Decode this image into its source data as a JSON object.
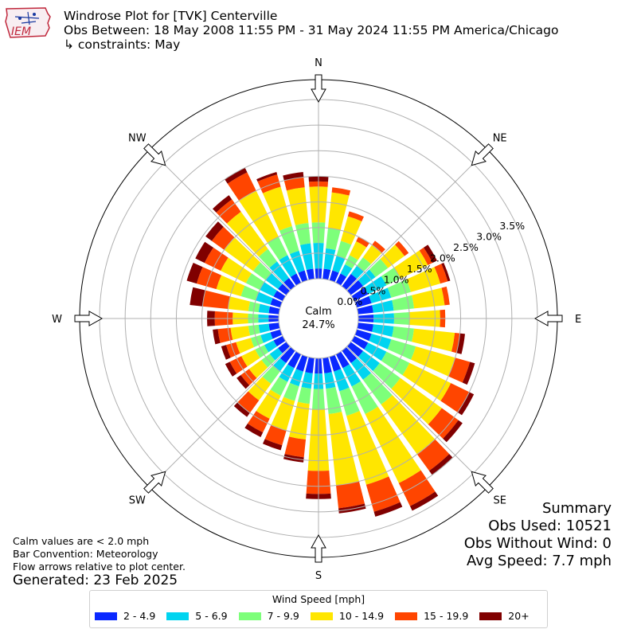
{
  "title": {
    "line1": "Windrose Plot for [TVK] Centerville",
    "line2": "Obs Between: 18 May 2008 11:55 PM - 31 May 2024 11:55 PM America/Chicago",
    "line3": "↳ constraints: May"
  },
  "logo": {
    "text": "IEM"
  },
  "notes": {
    "line1": "Calm values are < 2.0 mph",
    "line2": "Bar Convention: Meteorology",
    "line3": "Flow arrows relative to plot center.",
    "generated": "Generated: 23 Feb 2025"
  },
  "summary": {
    "heading": "Summary",
    "obs_used": "Obs Used: 10521",
    "obs_without_wind": "Obs Without Wind: 0",
    "avg_speed": "Avg Speed: 7.7 mph"
  },
  "chart_data": {
    "type": "windrose",
    "calm_label": "Calm",
    "calm_percent": "24.7%",
    "cardinal_labels": [
      "N",
      "NE",
      "E",
      "SE",
      "S",
      "SW",
      "W",
      "NW"
    ],
    "radial_ticks": [
      "0.0%",
      "0.5%",
      "1.0%",
      "1.5%",
      "2.0%",
      "2.5%",
      "3.0%",
      "3.5%"
    ],
    "radial_max": 3.5,
    "legend_title": "Wind Speed [mph]",
    "bins": [
      "2 - 4.9",
      "5 - 6.9",
      "7 - 9.9",
      "10 - 14.9",
      "15 - 19.9",
      "20+"
    ],
    "colors": [
      "#0a28ff",
      "#00d4f0",
      "#7dff7a",
      "#ffe600",
      "#ff4500",
      "#800000"
    ],
    "directions_deg": [
      0,
      10,
      20,
      30,
      40,
      50,
      60,
      70,
      80,
      90,
      100,
      110,
      120,
      130,
      140,
      150,
      160,
      170,
      180,
      190,
      200,
      210,
      220,
      230,
      240,
      250,
      260,
      270,
      280,
      290,
      300,
      310,
      320,
      330,
      340,
      350
    ],
    "cumulative_percent": [
      [
        0.2,
        0.7,
        1.1,
        1.8,
        1.9,
        2.0
      ],
      [
        0.2,
        0.6,
        1.0,
        1.7,
        1.8,
        1.8
      ],
      [
        0.2,
        0.5,
        0.8,
        1.3,
        1.4,
        1.4
      ],
      [
        0.2,
        0.4,
        0.6,
        0.9,
        1.0,
        1.0
      ],
      [
        0.3,
        0.5,
        0.7,
        1.0,
        1.1,
        1.1
      ],
      [
        0.3,
        0.6,
        0.9,
        1.3,
        1.4,
        1.4
      ],
      [
        0.3,
        0.7,
        1.0,
        1.6,
        1.7,
        1.8
      ],
      [
        0.3,
        0.7,
        1.1,
        1.7,
        1.85,
        1.9
      ],
      [
        0.3,
        0.7,
        1.1,
        1.7,
        1.8,
        1.8
      ],
      [
        0.3,
        0.7,
        1.0,
        1.6,
        1.7,
        1.7
      ],
      [
        0.3,
        0.7,
        1.1,
        1.9,
        2.0,
        2.1
      ],
      [
        0.3,
        0.7,
        1.2,
        2.0,
        2.3,
        2.4
      ],
      [
        0.3,
        0.7,
        1.2,
        2.1,
        2.5,
        2.6
      ],
      [
        0.3,
        0.7,
        1.2,
        2.2,
        2.6,
        2.7
      ],
      [
        0.3,
        0.7,
        1.3,
        2.5,
        2.9,
        3.0
      ],
      [
        0.3,
        0.7,
        1.3,
        2.8,
        3.3,
        3.4
      ],
      [
        0.3,
        0.7,
        1.2,
        2.6,
        3.15,
        3.25
      ],
      [
        0.3,
        0.6,
        1.1,
        2.5,
        2.95,
        3.05
      ],
      [
        0.3,
        0.6,
        1.0,
        2.2,
        2.65,
        2.75
      ],
      [
        0.3,
        0.6,
        0.9,
        1.6,
        1.95,
        2.05
      ],
      [
        0.3,
        0.6,
        0.9,
        1.5,
        1.8,
        1.9
      ],
      [
        0.3,
        0.6,
        0.9,
        1.4,
        1.7,
        1.8
      ],
      [
        0.3,
        0.5,
        0.8,
        1.2,
        1.5,
        1.6
      ],
      [
        0.2,
        0.4,
        0.6,
        0.9,
        1.1,
        1.2
      ],
      [
        0.2,
        0.4,
        0.6,
        0.9,
        1.15,
        1.25
      ],
      [
        0.2,
        0.4,
        0.6,
        0.9,
        1.1,
        1.2
      ],
      [
        0.2,
        0.4,
        0.6,
        0.95,
        1.2,
        1.3
      ],
      [
        0.2,
        0.4,
        0.6,
        0.9,
        1.25,
        1.4
      ],
      [
        0.2,
        0.4,
        0.6,
        1.0,
        1.5,
        1.75
      ],
      [
        0.2,
        0.5,
        0.8,
        1.3,
        1.7,
        1.9
      ],
      [
        0.2,
        0.5,
        0.8,
        1.35,
        1.7,
        1.9
      ],
      [
        0.2,
        0.5,
        0.8,
        1.5,
        1.8,
        1.95
      ],
      [
        0.2,
        0.6,
        0.9,
        1.8,
        2.1,
        2.2
      ],
      [
        0.2,
        0.6,
        1.0,
        2.0,
        2.4,
        2.5
      ],
      [
        0.2,
        0.6,
        1.1,
        1.9,
        2.15,
        2.2
      ],
      [
        0.2,
        0.7,
        1.1,
        1.8,
        2.0,
        2.1
      ]
    ]
  }
}
